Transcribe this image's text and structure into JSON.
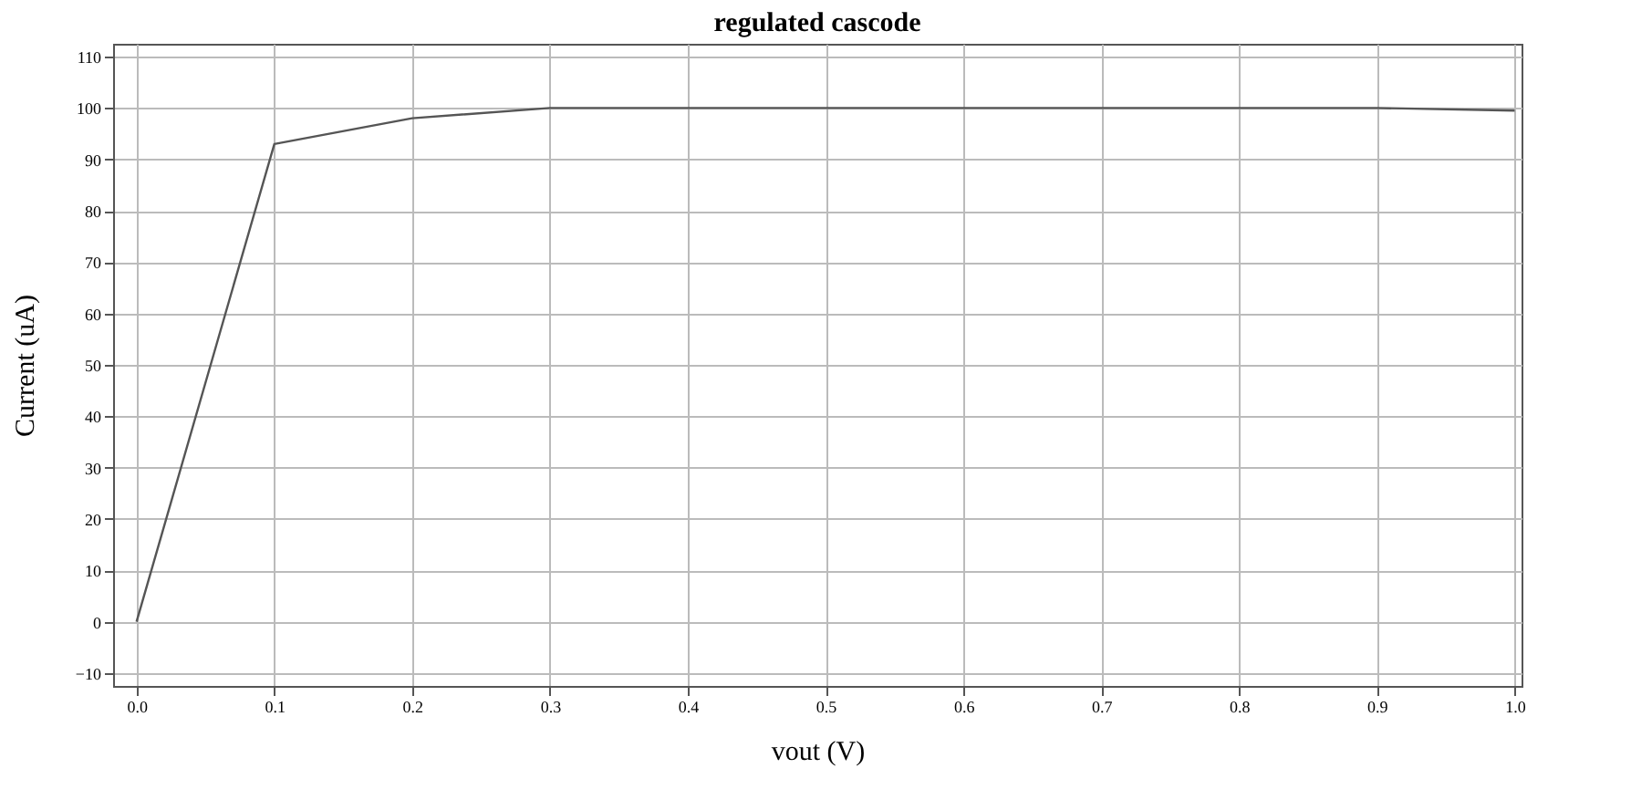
{
  "chart_data": {
    "type": "line",
    "title": "regulated cascode",
    "xlabel": "vout (V)",
    "ylabel": "Current (uA)",
    "x": [
      0.0,
      0.1,
      0.2,
      0.3,
      0.4,
      0.5,
      0.6,
      0.7,
      0.8,
      0.9,
      1.0
    ],
    "series": [
      {
        "color": "#555555",
        "values": [
          0,
          93,
          98,
          100,
          100,
          100,
          100,
          100,
          100,
          100,
          99.5
        ]
      }
    ],
    "xlim": [
      -0.017,
      1.005
    ],
    "xticks": [
      {
        "value": 0,
        "label": "0.0"
      },
      0.1,
      0.2,
      0.3,
      0.4,
      0.5,
      0.6,
      0.7,
      0.8,
      0.9,
      {
        "value": 1,
        "label": "1.0"
      }
    ],
    "ylim": [
      -12.5,
      112.5
    ],
    "yticks": [
      -10,
      0,
      10,
      20,
      30,
      40,
      50,
      60,
      70,
      80,
      90,
      100,
      110
    ],
    "grid": true,
    "marker": "none",
    "line_style": "solid"
  }
}
